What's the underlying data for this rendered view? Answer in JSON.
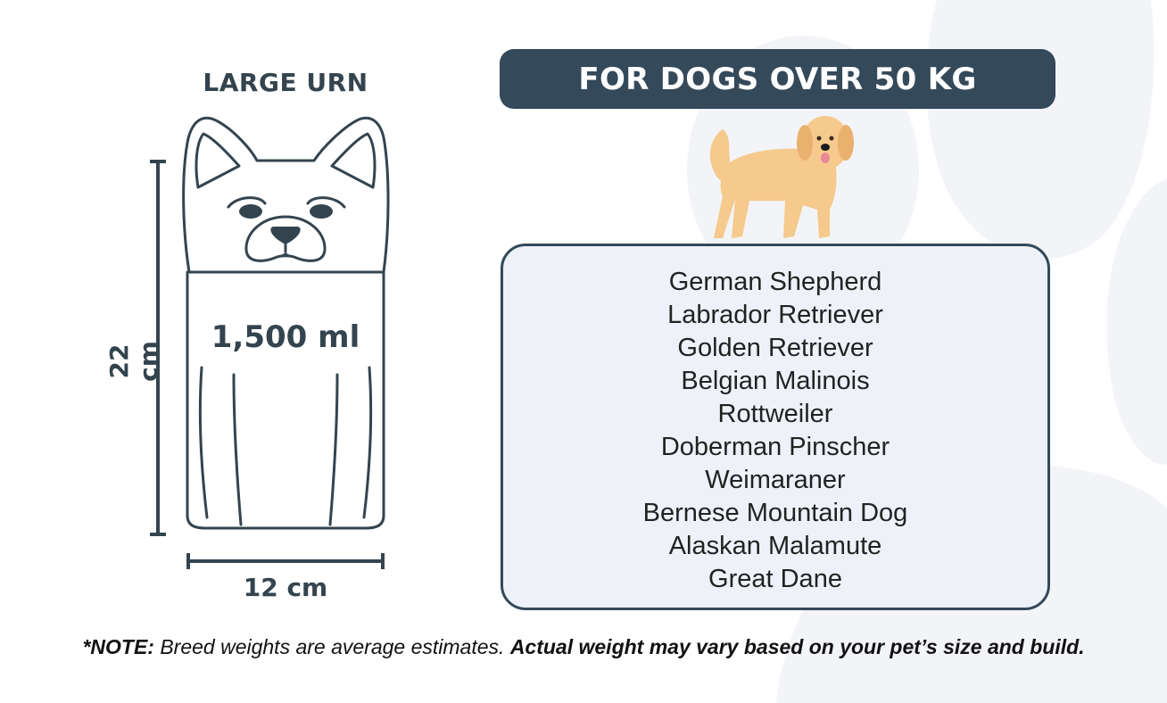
{
  "urn": {
    "title": "LARGE URN",
    "capacity": "1,500 ml",
    "height": "22 cm",
    "width": "12 cm"
  },
  "banner": {
    "title": "FOR DOGS OVER 50 KG"
  },
  "breeds": [
    "German Shepherd",
    "Labrador Retriever",
    "Golden Retriever",
    "Belgian Malinois",
    "Rottweiler",
    "Doberman Pinscher",
    "Weimaraner",
    "Bernese Mountain Dog",
    "Alaskan Malamute",
    "Great Dane"
  ],
  "note": {
    "label": "*NOTE:",
    "text": " Breed weights are average estimates. ",
    "emphasis": "Actual weight may vary based on your pet’s size and build."
  },
  "icons": [
    "paw-print-watermark",
    "dog-urn-outline",
    "golden-retriever-illustration"
  ],
  "colors": {
    "dark": "#34495a",
    "panel": "#eef2f8",
    "paw": "#f2f4f7",
    "dog": "#f6c98c"
  }
}
